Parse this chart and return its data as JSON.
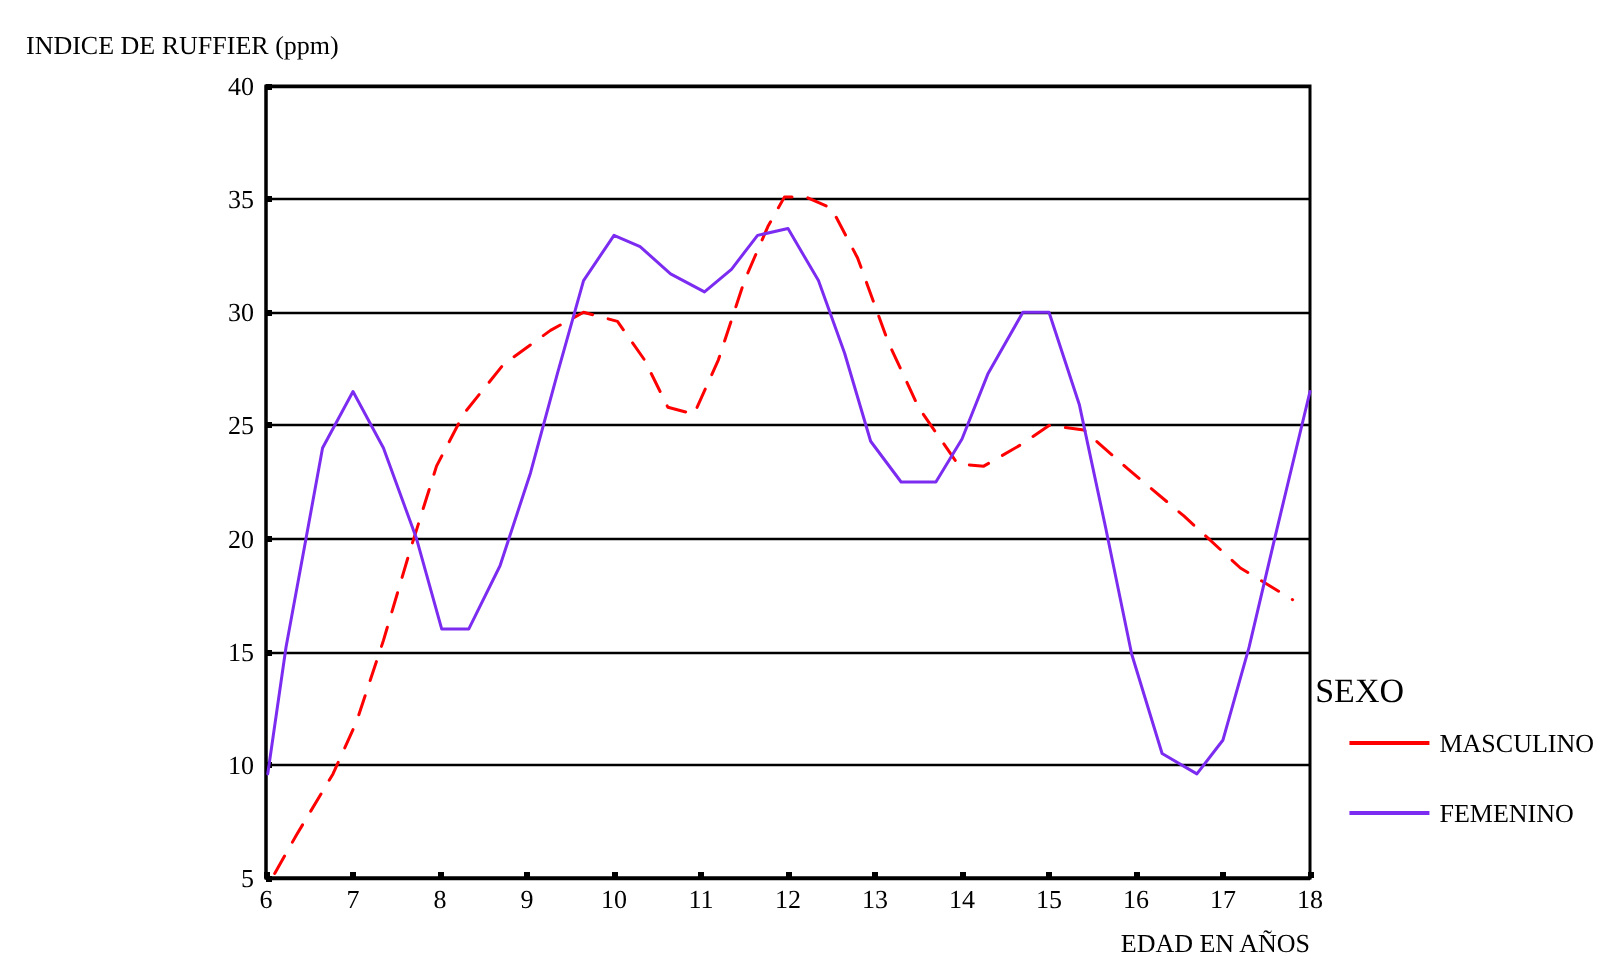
{
  "chart_data": {
    "type": "line",
    "ylabel": "INDICE DE RUFFIER (ppm)",
    "xlabel": "EDAD EN AÑOS",
    "legend_title": "SEXO",
    "xlim": [
      6,
      18
    ],
    "xticks": [
      6,
      7,
      8,
      9,
      10,
      11,
      12,
      13,
      14,
      15,
      16,
      17,
      18
    ],
    "ylim": [
      5,
      40
    ],
    "yticks": [
      5,
      10,
      15,
      20,
      25,
      30,
      35,
      40
    ],
    "grid": "y",
    "legend": "right",
    "marker": "none",
    "series": [
      {
        "name": "MASCULINO",
        "color": "#ff0000",
        "line_style": "dashed",
        "x": [
          6.1,
          6.35,
          6.77,
          7.04,
          7.35,
          7.65,
          7.96,
          8.27,
          8.73,
          9.27,
          9.65,
          10.04,
          10.35,
          10.62,
          10.92,
          11.2,
          11.5,
          11.77,
          11.96,
          12.2,
          12.5,
          12.8,
          13.15,
          13.5,
          13.95,
          14.25,
          14.7,
          15.0,
          15.4,
          15.9,
          16.55,
          17.2,
          17.8
        ],
        "values": [
          5.2,
          6.9,
          9.6,
          11.9,
          15.5,
          19.4,
          23.2,
          25.5,
          27.7,
          29.2,
          30,
          29.6,
          27.9,
          25.8,
          25.5,
          27.9,
          31.4,
          33.8,
          35.1,
          35.1,
          34.6,
          32.4,
          28.7,
          25.8,
          23.3,
          23.2,
          24.2,
          25,
          24.8,
          23.1,
          21.0,
          18.7,
          17.3
        ]
      },
      {
        "name": "FEMENINO",
        "color": "#7b2cf0",
        "line_style": "solid",
        "x": [
          6.02,
          6.23,
          6.46,
          6.65,
          7,
          7.35,
          7.73,
          8.02,
          8.33,
          8.69,
          9.04,
          9.35,
          9.65,
          10,
          10.3,
          10.65,
          11.04,
          11.35,
          11.65,
          12,
          12.35,
          12.65,
          12.95,
          13.3,
          13.7,
          14.0,
          14.3,
          14.7,
          15.0,
          15.35,
          15.65,
          15.95,
          16.3,
          16.7,
          17.0,
          17.3,
          17.6,
          18
        ],
        "values": [
          9.6,
          15.2,
          20,
          24.0,
          26.5,
          24.0,
          20,
          16,
          16,
          18.8,
          22.9,
          27.3,
          31.4,
          33.4,
          32.9,
          31.7,
          30.9,
          31.9,
          33.4,
          33.7,
          31.4,
          28.2,
          24.3,
          22.5,
          22.5,
          24.4,
          27.3,
          30,
          30,
          25.9,
          20.5,
          14.9,
          10.5,
          9.6,
          11.1,
          15.2,
          20.1,
          26.5
        ]
      }
    ]
  }
}
